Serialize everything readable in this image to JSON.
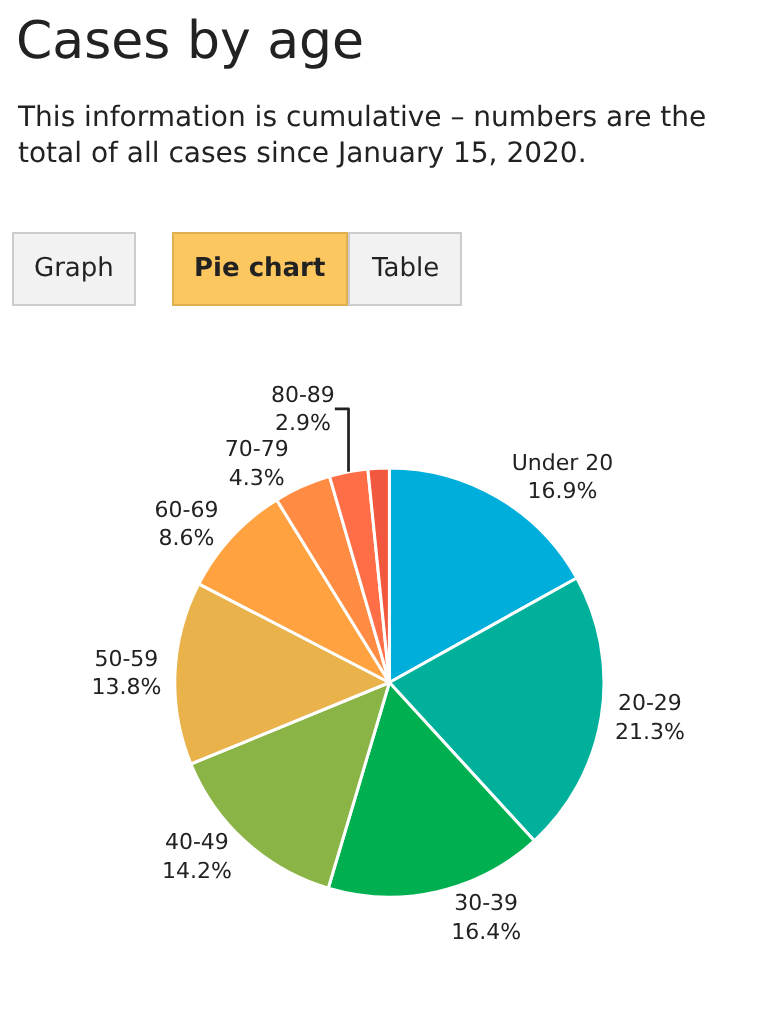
{
  "chart_data": {
    "type": "pie",
    "title": "Cases by age",
    "subtitle": "This information is cumulative – numbers are the total of all cases since January 15, 2020.",
    "annotations": [
      "Graph",
      "Pie chart",
      "Table"
    ],
    "categories": [
      "Under 20",
      "20-29",
      "30-39",
      "40-49",
      "50-59",
      "60-69",
      "70-79",
      "80-89",
      null
    ],
    "values": [
      16.9,
      21.3,
      16.4,
      14.2,
      13.8,
      8.6,
      4.3,
      2.9,
      1.6
    ],
    "value_labels": [
      "16.9%",
      "21.3%",
      "16.4%",
      "14.2%",
      "13.8%",
      "8.6%",
      "4.3%",
      "2.9%",
      null
    ],
    "colors": [
      "#00aedb",
      "#00b09b",
      "#00b050",
      "#8bb446",
      "#e9b24a",
      "#ffa23f",
      "#ff8c42",
      "#ff6e46",
      "#f2583e"
    ],
    "legend": false
  }
}
